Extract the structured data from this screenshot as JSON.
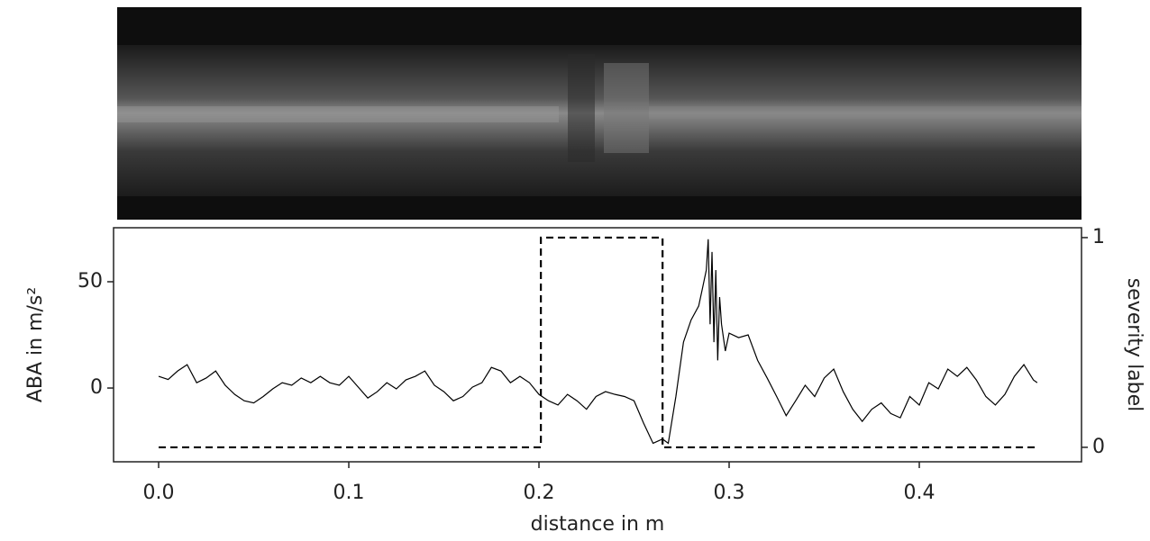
{
  "chart_data": {
    "type": "line",
    "xlabel": "distance in m",
    "ylabel": "ABA in m/s²",
    "y2label": "severity label",
    "xlim": [
      -0.0237,
      0.4853
    ],
    "ylim": [
      -34.7,
      75.4
    ],
    "y2lim": [
      -0.069,
      1.047
    ],
    "xticks": [
      {
        "value": 0,
        "label": "0.0"
      },
      0.1,
      0.2,
      0.3,
      0.4
    ],
    "yticks": [
      0,
      50
    ],
    "y2ticks": [
      0,
      1
    ],
    "series": [
      {
        "color": "#000000",
        "x": [
          0,
          0.005,
          0.01,
          0.015,
          0.02,
          0.025,
          0.03,
          0.035,
          0.04,
          0.045,
          0.05,
          0.055,
          0.06,
          0.065,
          0.07,
          0.075,
          0.08,
          0.085,
          0.09,
          0.095,
          0.1,
          0.105,
          0.11,
          0.115,
          0.12,
          0.125,
          0.13,
          0.135,
          0.14,
          0.145,
          0.15,
          0.155,
          0.16,
          0.165,
          0.17,
          0.175,
          0.18,
          0.185,
          0.19,
          0.195,
          0.2,
          0.205,
          0.21,
          0.215,
          0.22,
          0.225,
          0.23,
          0.235,
          0.24,
          0.245,
          0.25,
          0.255,
          0.26,
          0.265,
          0.268,
          0.272,
          0.276,
          0.28,
          0.284,
          0.286,
          0.288,
          0.289,
          0.29,
          0.291,
          0.292,
          0.293,
          0.294,
          0.295,
          0.296,
          0.298,
          0.3,
          0.305,
          0.31,
          0.315,
          0.32,
          0.325,
          0.33,
          0.335,
          0.34,
          0.345,
          0.35,
          0.355,
          0.36,
          0.365,
          0.37,
          0.375,
          0.38,
          0.385,
          0.39,
          0.395,
          0.4,
          0.405,
          0.41,
          0.415,
          0.42,
          0.425,
          0.43,
          0.435,
          0.44,
          0.445,
          0.45,
          0.455,
          0.46,
          0.462
        ],
        "values": [
          5.5,
          4,
          8,
          11,
          2.5,
          4.7,
          8,
          1.3,
          -3,
          -6,
          -7,
          -4,
          -0.4,
          2.5,
          1.3,
          4.7,
          2.5,
          5.5,
          2.5,
          1.3,
          5.5,
          0.4,
          -4.7,
          -1.7,
          2.5,
          -0.4,
          3.8,
          5.5,
          8,
          1.3,
          -1.7,
          -6,
          -4,
          0.4,
          2.5,
          9.7,
          8,
          2.5,
          5.5,
          2.5,
          -3,
          -6,
          -8,
          -3,
          -6,
          -10,
          -4,
          -1.7,
          -3,
          -4,
          -6,
          -16.5,
          -26,
          -24,
          -26,
          -4,
          21.6,
          32,
          38.6,
          47,
          55.5,
          70,
          30,
          64,
          21.6,
          55.5,
          13,
          42.8,
          30,
          17.4,
          25.8,
          23.7,
          25,
          13,
          4.7,
          -4,
          -13,
          -6,
          1.3,
          -4,
          4.7,
          8.9,
          -1.7,
          -10,
          -15.7,
          -10,
          -7,
          -12,
          -14,
          -4,
          -8,
          2.5,
          -0.4,
          8.9,
          5.5,
          9.7,
          3.8,
          -4,
          -8,
          -3,
          5.5,
          11,
          3.8,
          2.5
        ]
      },
      {
        "color": "#000000",
        "axis": "y2",
        "linestyle": "dashed",
        "x": [
          0,
          0.201,
          0.201,
          0.265,
          0.265,
          0.462
        ],
        "values": [
          0,
          0,
          1,
          1,
          0,
          0
        ]
      }
    ]
  }
}
